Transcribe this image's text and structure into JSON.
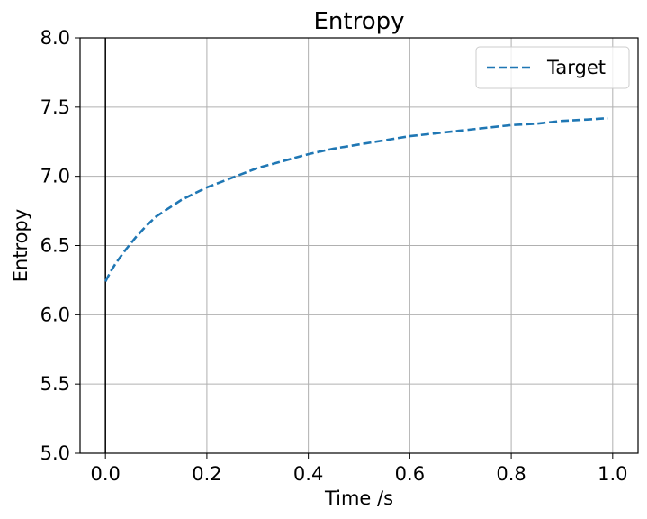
{
  "chart_data": {
    "type": "line",
    "title": "Entropy",
    "xlabel": "Time /s",
    "ylabel": "Entropy",
    "xlim": [
      -0.05,
      1.05
    ],
    "ylim": [
      5.0,
      8.0
    ],
    "xticks": [
      0.0,
      0.2,
      0.4,
      0.6,
      0.8,
      1.0
    ],
    "xtick_labels": [
      "0.0",
      "0.2",
      "0.4",
      "0.6",
      "0.8",
      "1.0"
    ],
    "yticks": [
      5.0,
      5.5,
      6.0,
      6.5,
      7.0,
      7.5,
      8.0
    ],
    "ytick_labels": [
      "5.0",
      "5.5",
      "6.0",
      "6.5",
      "7.0",
      "7.5",
      "8.0"
    ],
    "grid": true,
    "legend_position": "upper right",
    "reference_lines": [
      {
        "orientation": "vertical",
        "x": 0.0,
        "color": "#000000"
      }
    ],
    "series": [
      {
        "name": "Target",
        "color": "#1f77b4",
        "linestyle": "dashed",
        "x": [
          0.0,
          0.01,
          0.02,
          0.04,
          0.06,
          0.08,
          0.1,
          0.15,
          0.2,
          0.25,
          0.3,
          0.35,
          0.4,
          0.45,
          0.5,
          0.55,
          0.6,
          0.65,
          0.7,
          0.75,
          0.8,
          0.85,
          0.9,
          0.95,
          0.99
        ],
        "y": [
          6.24,
          6.31,
          6.37,
          6.47,
          6.56,
          6.64,
          6.71,
          6.83,
          6.92,
          6.99,
          7.06,
          7.11,
          7.16,
          7.2,
          7.23,
          7.26,
          7.29,
          7.31,
          7.33,
          7.35,
          7.37,
          7.38,
          7.4,
          7.41,
          7.42
        ]
      }
    ]
  }
}
